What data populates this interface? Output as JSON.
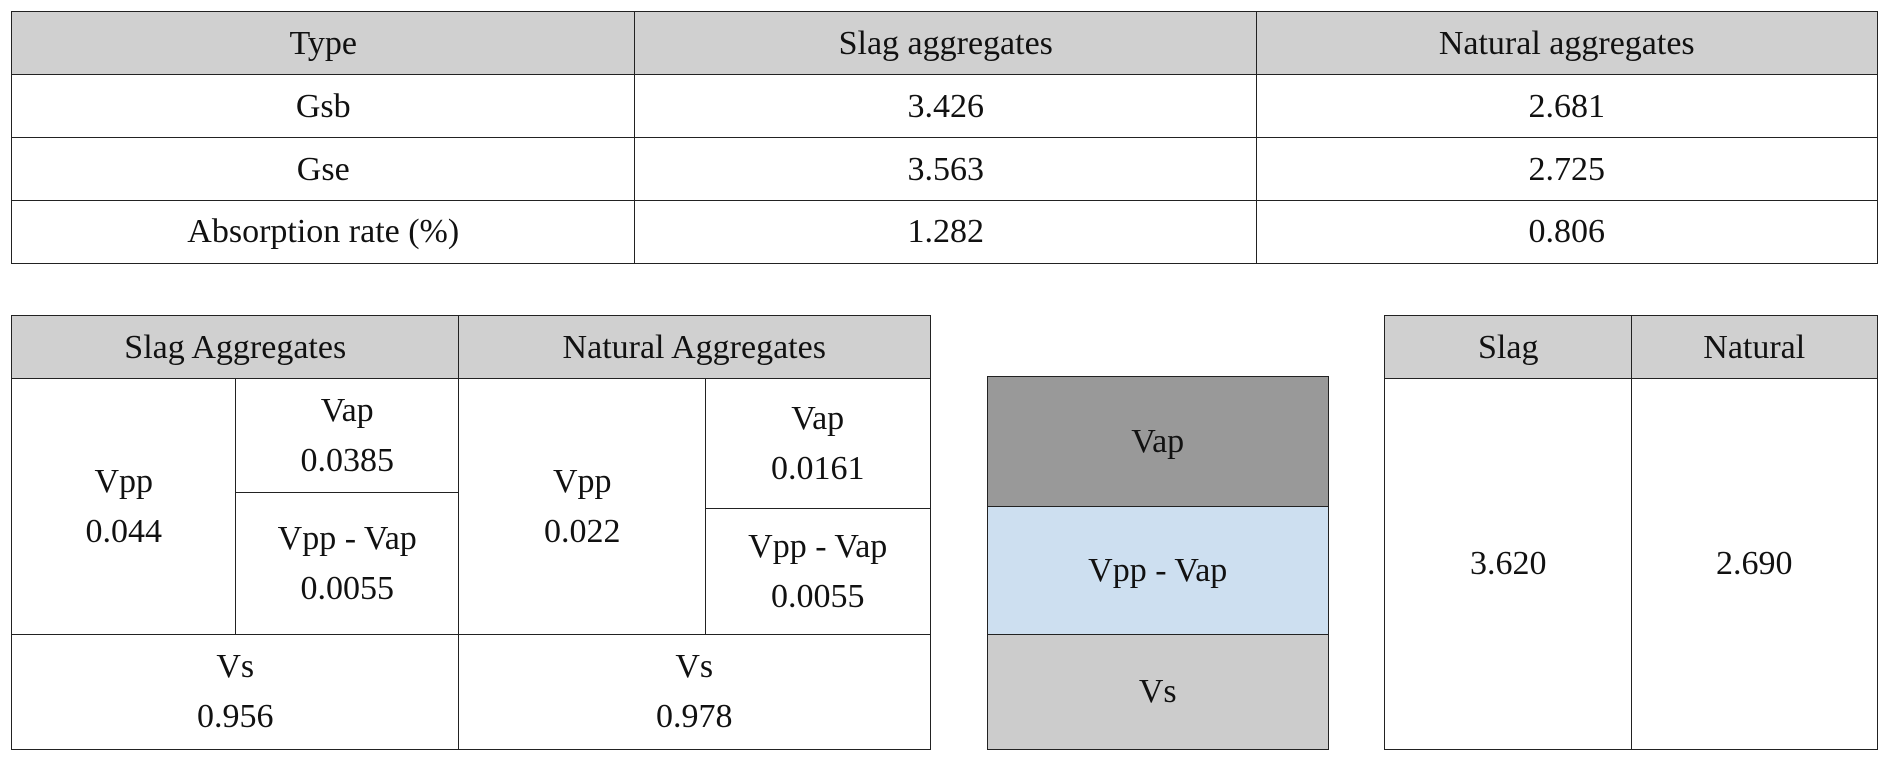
{
  "top_table": {
    "header": [
      "Type",
      "Slag aggregates",
      "Natural aggregates"
    ],
    "rows": [
      [
        "Gsb",
        "3.426",
        "2.681"
      ],
      [
        "Gse",
        "3.563",
        "2.725"
      ],
      [
        "Absorption rate (%)",
        "1.282",
        "0.806"
      ]
    ]
  },
  "volume_table": {
    "header": [
      "Slag Aggregates",
      "Natural Aggregates"
    ],
    "slag": {
      "vpp": {
        "label": "Vpp",
        "value": "0.044"
      },
      "vap": {
        "label": "Vap",
        "value": "0.0385"
      },
      "vpp_minus_vap": {
        "label": "Vpp - Vap",
        "value": "0.0055"
      },
      "vs": {
        "label": "Vs",
        "value": "0.956"
      }
    },
    "natural": {
      "vpp": {
        "label": "Vpp",
        "value": "0.022"
      },
      "vap": {
        "label": "Vap",
        "value": "0.0161"
      },
      "vpp_minus_vap": {
        "label": "Vpp - Vap",
        "value": "0.0055"
      },
      "vs": {
        "label": "Vs",
        "value": "0.978"
      }
    }
  },
  "diagram": {
    "layers": [
      "Vap",
      "Vpp - Vap",
      "Vs"
    ]
  },
  "density_table": {
    "header": [
      "Slag",
      "Natural"
    ],
    "values": [
      "3.620",
      "2.690"
    ]
  }
}
